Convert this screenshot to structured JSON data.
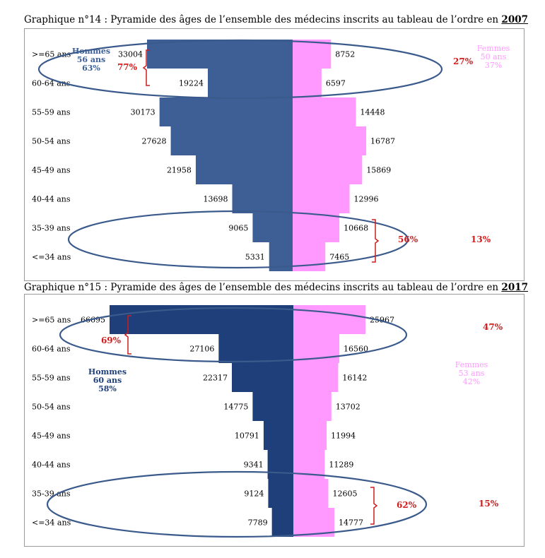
{
  "chart_data": [
    {
      "type": "bar",
      "title_prefix": "Graphique n°14 : Pyramide des âges de l’ensemble des médecins inscrits au tableau de l’ordre en ",
      "title_year": "2007",
      "categories": [
        ">=65 ans",
        "60-64 ans",
        "55-59 ans",
        "50-54 ans",
        "45-49 ans",
        "40-44 ans",
        "35-39 ans",
        "<=34 ans"
      ],
      "series": [
        {
          "values": [
            33004,
            19224,
            30173,
            27628,
            21958,
            13698,
            9065,
            5331
          ],
          "color": "#3d5f96"
        },
        {
          "values": [
            8752,
            6597,
            14448,
            16787,
            15869,
            12996,
            10668,
            7465
          ],
          "color": "#ff99ff"
        }
      ],
      "annotations": {
        "men_label": [
          "Hommes",
          "56 ans",
          "63%"
        ],
        "women_label": [
          "Femmes",
          "50 ans",
          "37%"
        ],
        "top_men_share": "77%",
        "top_women_share": "27%",
        "bottom_women_share": "56%",
        "bottom_men_share": "13%"
      }
    },
    {
      "type": "bar",
      "title_prefix": "Graphique n°15 : Pyramide des âges de l’ensemble des médecins inscrits au tableau de l’ordre en ",
      "title_year": "2017",
      "categories": [
        ">=65 ans",
        "60-64 ans",
        "55-59 ans",
        "50-54 ans",
        "45-49 ans",
        "40-44 ans",
        "35-39 ans",
        "<=34 ans"
      ],
      "series": [
        {
          "values": [
            66695,
            27106,
            22317,
            14775,
            10791,
            9341,
            9124,
            7789
          ],
          "color": "#1f3f7a"
        },
        {
          "values": [
            25967,
            16560,
            16142,
            13702,
            11994,
            11289,
            12605,
            14777
          ],
          "color": "#ff99ff"
        }
      ],
      "annotations": {
        "men_label": [
          "Hommes",
          "60 ans",
          "58%"
        ],
        "women_label": [
          "Femmes",
          "53 ans",
          "42%"
        ],
        "top_men_share": "69%",
        "top_women_share": "47%",
        "bottom_women_share": "62%",
        "bottom_men_share": "15%"
      }
    }
  ]
}
